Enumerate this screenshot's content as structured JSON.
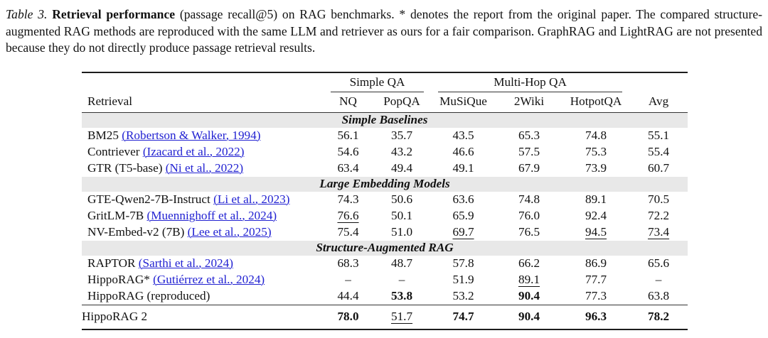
{
  "caption": {
    "label": "Table 3.",
    "title": "Retrieval performance",
    "rest": " (passage recall@5) on RAG benchmarks. * denotes the report from the original paper. The compared structure-augmented RAG methods are reproduced with the same LLM and retriever as ours for a fair comparison. GraphRAG and LightRAG are not presented because they do not directly produce passage retrieval results."
  },
  "table": {
    "row_header": "Retrieval",
    "col_groups": [
      {
        "label": "Simple QA"
      },
      {
        "label": "Multi-Hop QA"
      }
    ],
    "columns": [
      "NQ",
      "PopQA",
      "MuSiQue",
      "2Wiki",
      "HotpotQA",
      "Avg"
    ],
    "sections": [
      {
        "header": "Simple Baselines",
        "rows": [
          {
            "method": "BM25",
            "citation": "(Robertson & Walker, 1994)",
            "cells": [
              {
                "v": "56.1",
                "s": "n"
              },
              {
                "v": "35.7",
                "s": "n"
              },
              {
                "v": "43.5",
                "s": "n"
              },
              {
                "v": "65.3",
                "s": "n"
              },
              {
                "v": "74.8",
                "s": "n"
              },
              {
                "v": "55.1",
                "s": "n"
              }
            ]
          },
          {
            "method": "Contriever",
            "citation": "(Izacard et al., 2022)",
            "cells": [
              {
                "v": "54.6",
                "s": "n"
              },
              {
                "v": "43.2",
                "s": "n"
              },
              {
                "v": "46.6",
                "s": "n"
              },
              {
                "v": "57.5",
                "s": "n"
              },
              {
                "v": "75.3",
                "s": "n"
              },
              {
                "v": "55.4",
                "s": "n"
              }
            ]
          },
          {
            "method": "GTR (T5-base)",
            "citation": "(Ni et al., 2022)",
            "cells": [
              {
                "v": "63.4",
                "s": "n"
              },
              {
                "v": "49.4",
                "s": "n"
              },
              {
                "v": "49.1",
                "s": "n"
              },
              {
                "v": "67.9",
                "s": "n"
              },
              {
                "v": "73.9",
                "s": "n"
              },
              {
                "v": "60.7",
                "s": "n"
              }
            ]
          }
        ]
      },
      {
        "header": "Large Embedding Models",
        "rows": [
          {
            "method": "GTE-Qwen2-7B-Instruct",
            "citation": "(Li et al., 2023)",
            "cells": [
              {
                "v": "74.3",
                "s": "n"
              },
              {
                "v": "50.6",
                "s": "n"
              },
              {
                "v": "63.6",
                "s": "n"
              },
              {
                "v": "74.8",
                "s": "n"
              },
              {
                "v": "89.1",
                "s": "n"
              },
              {
                "v": "70.5",
                "s": "n"
              }
            ]
          },
          {
            "method": "GritLM-7B",
            "citation": "(Muennighoff et al., 2024)",
            "cells": [
              {
                "v": "76.6",
                "s": "u"
              },
              {
                "v": "50.1",
                "s": "n"
              },
              {
                "v": "65.9",
                "s": "n"
              },
              {
                "v": "76.0",
                "s": "n"
              },
              {
                "v": "92.4",
                "s": "n"
              },
              {
                "v": "72.2",
                "s": "n"
              }
            ]
          },
          {
            "method": "NV-Embed-v2 (7B)",
            "citation": "(Lee et al., 2025)",
            "cells": [
              {
                "v": "75.4",
                "s": "n"
              },
              {
                "v": "51.0",
                "s": "n"
              },
              {
                "v": "69.7",
                "s": "u"
              },
              {
                "v": "76.5",
                "s": "n"
              },
              {
                "v": "94.5",
                "s": "u"
              },
              {
                "v": "73.4",
                "s": "u"
              }
            ]
          }
        ]
      },
      {
        "header": "Structure-Augmented RAG",
        "rows": [
          {
            "method": "RAPTOR",
            "citation": "(Sarthi et al., 2024)",
            "cells": [
              {
                "v": "68.3",
                "s": "n"
              },
              {
                "v": "48.7",
                "s": "n"
              },
              {
                "v": "57.8",
                "s": "n"
              },
              {
                "v": "66.2",
                "s": "n"
              },
              {
                "v": "86.9",
                "s": "n"
              },
              {
                "v": "65.6",
                "s": "n"
              }
            ]
          },
          {
            "method": "HippoRAG*",
            "citation": "(Gutiérrez et al., 2024)",
            "cells": [
              {
                "v": "–",
                "s": "n"
              },
              {
                "v": "–",
                "s": "n"
              },
              {
                "v": "51.9",
                "s": "n"
              },
              {
                "v": "89.1",
                "s": "u"
              },
              {
                "v": "77.7",
                "s": "n"
              },
              {
                "v": "–",
                "s": "n"
              }
            ]
          },
          {
            "method": "HippoRAG (reproduced)",
            "citation": "",
            "cells": [
              {
                "v": "44.4",
                "s": "n"
              },
              {
                "v": "53.8",
                "s": "b"
              },
              {
                "v": "53.2",
                "s": "n"
              },
              {
                "v": "90.4",
                "s": "b"
              },
              {
                "v": "77.3",
                "s": "n"
              },
              {
                "v": "63.8",
                "s": "n"
              }
            ]
          }
        ]
      }
    ],
    "final_row": {
      "method": "HippoRAG 2",
      "citation": "",
      "cells": [
        {
          "v": "78.0",
          "s": "b"
        },
        {
          "v": "51.7",
          "s": "u"
        },
        {
          "v": "74.7",
          "s": "b"
        },
        {
          "v": "90.4",
          "s": "b"
        },
        {
          "v": "96.3",
          "s": "b"
        },
        {
          "v": "78.2",
          "s": "b"
        }
      ]
    }
  },
  "colors": {
    "link_blue": "#2222d2",
    "section_band": "#e8e8e8",
    "rule_heavy": "#1c1c1c",
    "rule_light": "#333333"
  }
}
